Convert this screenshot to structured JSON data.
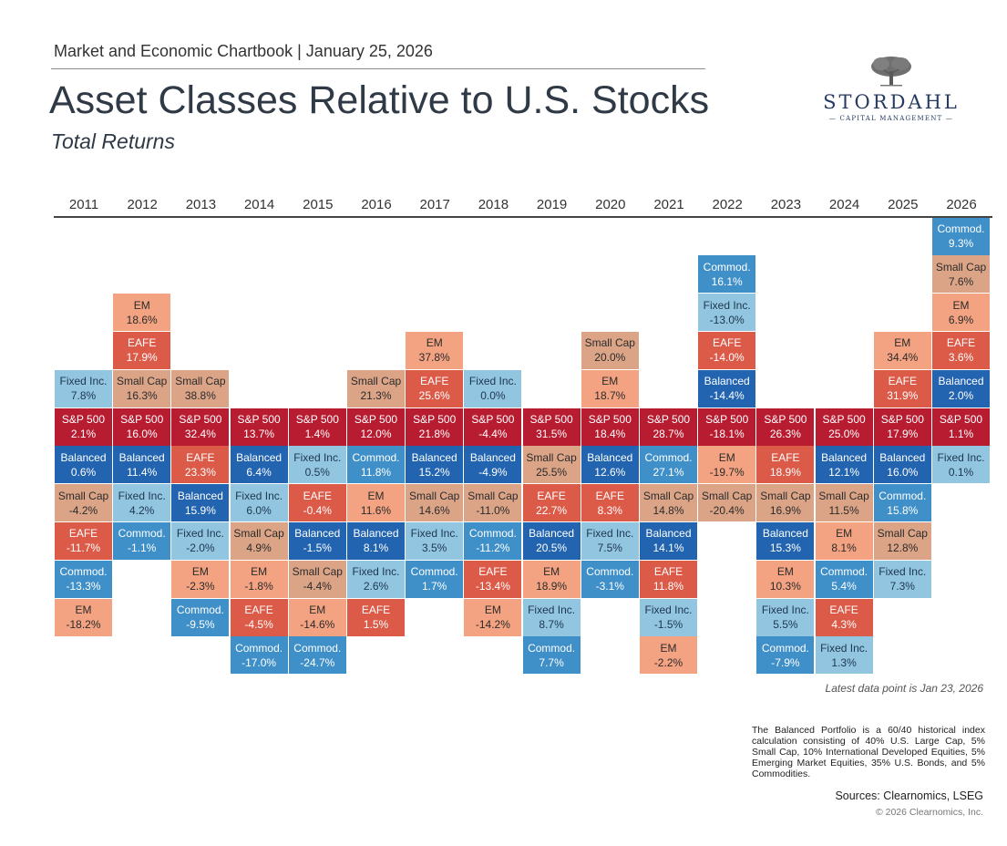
{
  "header": {
    "chartbook": "Market and Economic Chartbook | January 25, 2026",
    "title": "Asset Classes Relative to U.S. Stocks",
    "subtitle": "Total Returns"
  },
  "logo": {
    "name": "STORDAHL",
    "tagline": "— CAPITAL MANAGEMENT —"
  },
  "colors": {
    "S&P 500": "#b71c30",
    "EM": "#f3a382",
    "EAFE": "#db5a48",
    "Small Cap": "#dba487",
    "Fixed Inc.": "#92c6e0",
    "Balanced": "#2264b0",
    "Commod.": "#3f8fc8"
  },
  "text_colors": {
    "S&P 500": "#ffffff",
    "EM": "#2b2b2b",
    "EAFE": "#ffffff",
    "Small Cap": "#2b2b2b",
    "Fixed Inc.": "#1d3550",
    "Balanced": "#ffffff",
    "Commod.": "#ffffff"
  },
  "chart_data": {
    "type": "table",
    "title": "Asset Classes Relative to U.S. Stocks",
    "subtitle": "Total Returns",
    "unit": "%",
    "reference_asset": "S&P 500",
    "years": [
      "2011",
      "2012",
      "2013",
      "2014",
      "2015",
      "2016",
      "2017",
      "2018",
      "2019",
      "2020",
      "2021",
      "2022",
      "2023",
      "2024",
      "2025",
      "2026"
    ],
    "columns": [
      {
        "year": "2011",
        "cells": [
          [
            "Fixed Inc.",
            "7.8%"
          ],
          [
            "S&P 500",
            "2.1%"
          ],
          [
            "Balanced",
            "0.6%"
          ],
          [
            "Small Cap",
            "-4.2%"
          ],
          [
            "EAFE",
            "-11.7%"
          ],
          [
            "Commod.",
            "-13.3%"
          ],
          [
            "EM",
            "-18.2%"
          ]
        ]
      },
      {
        "year": "2012",
        "cells": [
          [
            "EM",
            "18.6%"
          ],
          [
            "EAFE",
            "17.9%"
          ],
          [
            "Small Cap",
            "16.3%"
          ],
          [
            "S&P 500",
            "16.0%"
          ],
          [
            "Balanced",
            "11.4%"
          ],
          [
            "Fixed Inc.",
            "4.2%"
          ],
          [
            "Commod.",
            "-1.1%"
          ]
        ]
      },
      {
        "year": "2013",
        "cells": [
          [
            "Small Cap",
            "38.8%"
          ],
          [
            "S&P 500",
            "32.4%"
          ],
          [
            "EAFE",
            "23.3%"
          ],
          [
            "Balanced",
            "15.9%"
          ],
          [
            "Fixed Inc.",
            "-2.0%"
          ],
          [
            "EM",
            "-2.3%"
          ],
          [
            "Commod.",
            "-9.5%"
          ]
        ]
      },
      {
        "year": "2014",
        "cells": [
          [
            "S&P 500",
            "13.7%"
          ],
          [
            "Balanced",
            "6.4%"
          ],
          [
            "Fixed Inc.",
            "6.0%"
          ],
          [
            "Small Cap",
            "4.9%"
          ],
          [
            "EM",
            "-1.8%"
          ],
          [
            "EAFE",
            "-4.5%"
          ],
          [
            "Commod.",
            "-17.0%"
          ]
        ]
      },
      {
        "year": "2015",
        "cells": [
          [
            "S&P 500",
            "1.4%"
          ],
          [
            "Fixed Inc.",
            "0.5%"
          ],
          [
            "EAFE",
            "-0.4%"
          ],
          [
            "Balanced",
            "-1.5%"
          ],
          [
            "Small Cap",
            "-4.4%"
          ],
          [
            "EM",
            "-14.6%"
          ],
          [
            "Commod.",
            "-24.7%"
          ]
        ]
      },
      {
        "year": "2016",
        "cells": [
          [
            "Small Cap",
            "21.3%"
          ],
          [
            "S&P 500",
            "12.0%"
          ],
          [
            "Commod.",
            "11.8%"
          ],
          [
            "EM",
            "11.6%"
          ],
          [
            "Balanced",
            "8.1%"
          ],
          [
            "Fixed Inc.",
            "2.6%"
          ],
          [
            "EAFE",
            "1.5%"
          ]
        ]
      },
      {
        "year": "2017",
        "cells": [
          [
            "EM",
            "37.8%"
          ],
          [
            "EAFE",
            "25.6%"
          ],
          [
            "S&P 500",
            "21.8%"
          ],
          [
            "Balanced",
            "15.2%"
          ],
          [
            "Small Cap",
            "14.6%"
          ],
          [
            "Fixed Inc.",
            "3.5%"
          ],
          [
            "Commod.",
            "1.7%"
          ]
        ]
      },
      {
        "year": "2018",
        "cells": [
          [
            "Fixed Inc.",
            "0.0%"
          ],
          [
            "S&P 500",
            "-4.4%"
          ],
          [
            "Balanced",
            "-4.9%"
          ],
          [
            "Small Cap",
            "-11.0%"
          ],
          [
            "Commod.",
            "-11.2%"
          ],
          [
            "EAFE",
            "-13.4%"
          ],
          [
            "EM",
            "-14.2%"
          ]
        ]
      },
      {
        "year": "2019",
        "cells": [
          [
            "S&P 500",
            "31.5%"
          ],
          [
            "Small Cap",
            "25.5%"
          ],
          [
            "EAFE",
            "22.7%"
          ],
          [
            "Balanced",
            "20.5%"
          ],
          [
            "EM",
            "18.9%"
          ],
          [
            "Fixed Inc.",
            "8.7%"
          ],
          [
            "Commod.",
            "7.7%"
          ]
        ]
      },
      {
        "year": "2020",
        "cells": [
          [
            "Small Cap",
            "20.0%"
          ],
          [
            "EM",
            "18.7%"
          ],
          [
            "S&P 500",
            "18.4%"
          ],
          [
            "Balanced",
            "12.6%"
          ],
          [
            "EAFE",
            "8.3%"
          ],
          [
            "Fixed Inc.",
            "7.5%"
          ],
          [
            "Commod.",
            "-3.1%"
          ]
        ]
      },
      {
        "year": "2021",
        "cells": [
          [
            "S&P 500",
            "28.7%"
          ],
          [
            "Commod.",
            "27.1%"
          ],
          [
            "Small Cap",
            "14.8%"
          ],
          [
            "Balanced",
            "14.1%"
          ],
          [
            "EAFE",
            "11.8%"
          ],
          [
            "Fixed Inc.",
            "-1.5%"
          ],
          [
            "EM",
            "-2.2%"
          ]
        ]
      },
      {
        "year": "2022",
        "cells": [
          [
            "Commod.",
            "16.1%"
          ],
          [
            "Fixed Inc.",
            "-13.0%"
          ],
          [
            "EAFE",
            "-14.0%"
          ],
          [
            "Balanced",
            "-14.4%"
          ],
          [
            "S&P 500",
            "-18.1%"
          ],
          [
            "EM",
            "-19.7%"
          ],
          [
            "Small Cap",
            "-20.4%"
          ]
        ]
      },
      {
        "year": "2023",
        "cells": [
          [
            "S&P 500",
            "26.3%"
          ],
          [
            "EAFE",
            "18.9%"
          ],
          [
            "Small Cap",
            "16.9%"
          ],
          [
            "Balanced",
            "15.3%"
          ],
          [
            "EM",
            "10.3%"
          ],
          [
            "Fixed Inc.",
            "5.5%"
          ],
          [
            "Commod.",
            "-7.9%"
          ]
        ]
      },
      {
        "year": "2024",
        "cells": [
          [
            "S&P 500",
            "25.0%"
          ],
          [
            "Balanced",
            "12.1%"
          ],
          [
            "Small Cap",
            "11.5%"
          ],
          [
            "EM",
            "8.1%"
          ],
          [
            "Commod.",
            "5.4%"
          ],
          [
            "EAFE",
            "4.3%"
          ],
          [
            "Fixed Inc.",
            "1.3%"
          ]
        ]
      },
      {
        "year": "2025",
        "cells": [
          [
            "EM",
            "34.4%"
          ],
          [
            "EAFE",
            "31.9%"
          ],
          [
            "S&P 500",
            "17.9%"
          ],
          [
            "Balanced",
            "16.0%"
          ],
          [
            "Commod.",
            "15.8%"
          ],
          [
            "Small Cap",
            "12.8%"
          ],
          [
            "Fixed Inc.",
            "7.3%"
          ]
        ]
      },
      {
        "year": "2026",
        "cells": [
          [
            "Commod.",
            "9.3%"
          ],
          [
            "Small Cap",
            "7.6%"
          ],
          [
            "EM",
            "6.9%"
          ],
          [
            "EAFE",
            "3.6%"
          ],
          [
            "Balanced",
            "2.0%"
          ],
          [
            "S&P 500",
            "1.1%"
          ],
          [
            "Fixed Inc.",
            "0.1%"
          ]
        ]
      }
    ]
  },
  "notes": {
    "latest": "Latest data point is Jan 23, 2026",
    "footnote": "The Balanced Portfolio is a 60/40 historical index calculation consisting of 40% U.S. Large Cap, 5% Small Cap, 10% International Developed Equities, 5% Emerging Market Equities, 35% U.S. Bonds, and 5% Commodities.",
    "sources": "Sources: Clearnomics, LSEG",
    "copyright": "© 2026 Clearnomics, Inc."
  }
}
